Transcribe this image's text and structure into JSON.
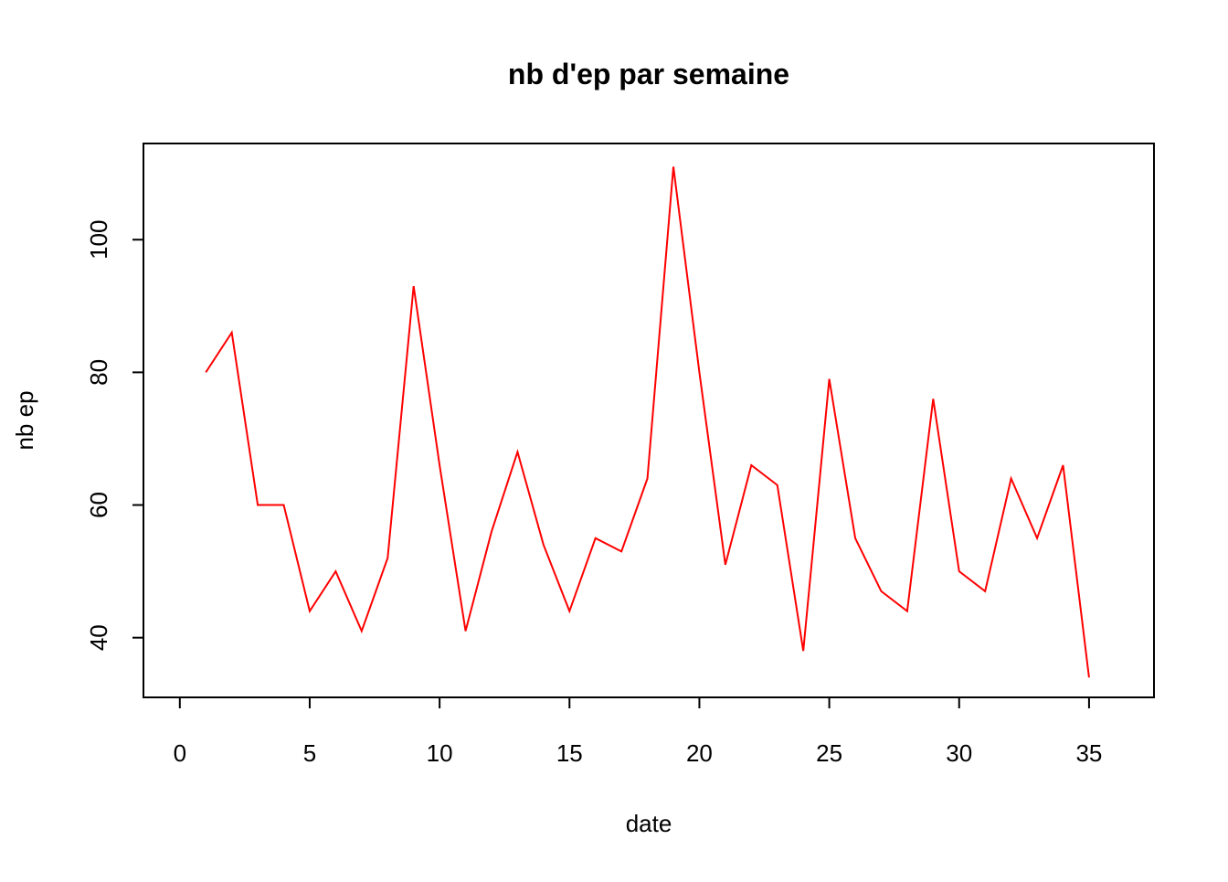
{
  "chart_data": {
    "type": "line",
    "title": "nb d'ep par semaine",
    "xlabel": "date",
    "ylabel": "nb ep",
    "x_ticks": [
      0,
      5,
      10,
      15,
      20,
      25,
      30,
      35
    ],
    "y_ticks": [
      40,
      60,
      80,
      100
    ],
    "xlim": [
      -1.4,
      37.5
    ],
    "ylim": [
      31,
      114.5
    ],
    "grid": false,
    "line_color": "#ff0000",
    "series": [
      {
        "x": [
          1,
          2,
          3,
          4,
          5,
          6,
          7,
          8,
          9,
          10,
          11,
          12,
          13,
          14,
          15,
          16,
          17,
          18,
          19,
          20,
          21,
          22,
          23,
          24,
          25,
          26,
          27,
          28,
          29,
          30,
          31,
          32,
          33,
          34,
          35
        ],
        "values": [
          80,
          86,
          60,
          60,
          44,
          50,
          41,
          52,
          93,
          66,
          41,
          56,
          68,
          54,
          44,
          55,
          53,
          64,
          111,
          80,
          51,
          66,
          63,
          38,
          79,
          55,
          47,
          44,
          76,
          50,
          47,
          64,
          55,
          66,
          34
        ]
      }
    ]
  }
}
